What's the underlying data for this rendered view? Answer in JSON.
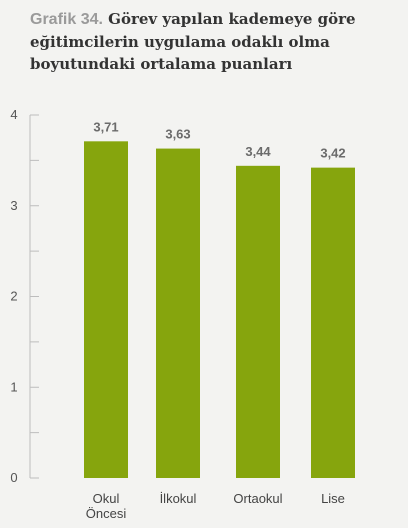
{
  "header": {
    "figure_label": "Grafik 34.",
    "title": "Görev yapılan kademeye göre eğitimcilerin uygulama odaklı olma boyutundaki ortalama puanları"
  },
  "colors": {
    "bar": "#86a50d",
    "axis": "#bdbdbd",
    "background": "#f3f3f1"
  },
  "chart_data": {
    "type": "bar",
    "title": "Görev yapılan kademeye göre eğitimcilerin uygulama odaklı olma boyutundaki ortalama puanları",
    "categories": [
      [
        "Okul",
        "Öncesi"
      ],
      [
        "İlkokul"
      ],
      [
        "Ortaokul"
      ],
      [
        "Lise"
      ]
    ],
    "values": [
      3.71,
      3.63,
      3.44,
      3.42
    ],
    "value_labels": [
      "3,71",
      "3,63",
      "3,44",
      "3,42"
    ],
    "ylim": [
      0,
      4
    ],
    "yticks": [
      0,
      1,
      2,
      3,
      4
    ],
    "minor_ticks": true,
    "grid": false,
    "xlabel": "",
    "ylabel": ""
  }
}
